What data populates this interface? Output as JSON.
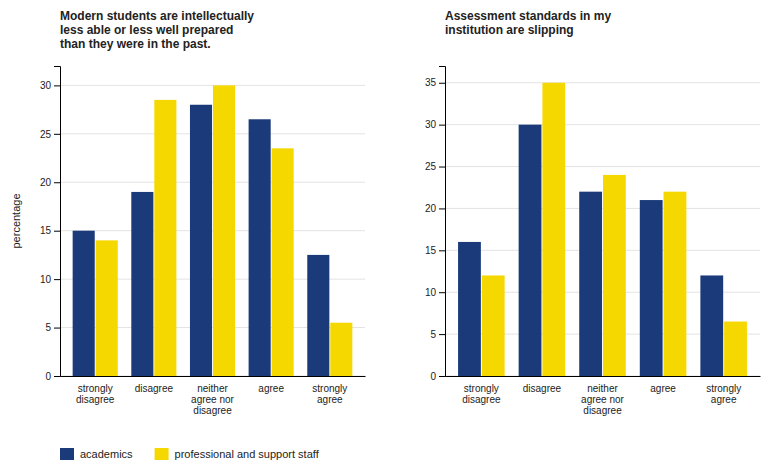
{
  "chart_data": [
    {
      "type": "bar",
      "title": "Modern students are intellectually\nless able or less well prepared\nthan they were in the past.",
      "categories": [
        "strongly\ndisagree",
        "disagree",
        "neither\nagree nor\ndisagree",
        "agree",
        "strongly\nagree"
      ],
      "series": [
        {
          "name": "academics",
          "color": "#1a3a7a",
          "values": [
            15,
            19,
            28,
            26.5,
            12.5
          ]
        },
        {
          "name": "professional and support staff",
          "color": "#f5d800",
          "values": [
            14,
            28.5,
            30,
            23.5,
            5.5
          ]
        }
      ],
      "ylabel": "percentage",
      "ylim": [
        0,
        32
      ],
      "yticks": [
        0,
        5,
        10,
        15,
        20,
        25,
        30
      ],
      "grid": true,
      "legend": "bottom"
    },
    {
      "type": "bar",
      "title": "Assessment standards in my\ninstitution are slipping",
      "categories": [
        "strongly\ndisagree",
        "disagree",
        "neither\nagree nor\ndisagree",
        "agree",
        "strongly\nagree"
      ],
      "series": [
        {
          "color": "#1a3a7a",
          "values": [
            16,
            30,
            22,
            21,
            12
          ]
        },
        {
          "color": "#f5d800",
          "values": [
            12,
            35,
            24,
            22,
            6.5
          ]
        }
      ],
      "ylim": [
        0,
        37
      ],
      "yticks": [
        0,
        5,
        10,
        15,
        20,
        25,
        30,
        35
      ],
      "grid": true
    }
  ]
}
